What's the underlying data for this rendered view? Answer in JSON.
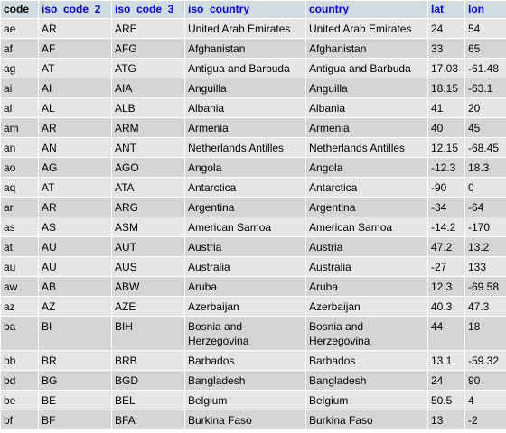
{
  "columns": [
    "code",
    "iso_code_2",
    "iso_code_3",
    "iso_country",
    "country",
    "lat",
    "lon"
  ],
  "rows": [
    [
      "ae",
      "AR",
      "ARE",
      "United Arab Emirates",
      "United Arab Emirates",
      "24",
      "54"
    ],
    [
      "af",
      "AF",
      "AFG",
      "Afghanistan",
      "Afghanistan",
      "33",
      "65"
    ],
    [
      "ag",
      "AT",
      "ATG",
      "Antigua and Barbuda",
      "Antigua and Barbuda",
      "17.03",
      "-61.48"
    ],
    [
      "ai",
      "AI",
      "AIA",
      "Anguilla",
      "Anguilla",
      "18.15",
      "-63.1"
    ],
    [
      "al",
      "AL",
      "ALB",
      "Albania",
      "Albania",
      "41",
      "20"
    ],
    [
      "am",
      "AR",
      "ARM",
      "Armenia",
      "Armenia",
      "40",
      "45"
    ],
    [
      "an",
      "AN",
      "ANT",
      "Netherlands Antilles",
      "Netherlands Antilles",
      "12.15",
      "-68.45"
    ],
    [
      "ao",
      "AG",
      "AGO",
      "Angola",
      "Angola",
      "-12.3",
      "18.3"
    ],
    [
      "aq",
      "AT",
      "ATA",
      "Antarctica",
      "Antarctica",
      "-90",
      "0"
    ],
    [
      "ar",
      "AR",
      "ARG",
      "Argentina",
      "Argentina",
      "-34",
      "-64"
    ],
    [
      "as",
      "AS",
      "ASM",
      "American Samoa",
      "American Samoa",
      "-14.2",
      "-170"
    ],
    [
      "at",
      "AU",
      "AUT",
      "Austria",
      "Austria",
      "47.2",
      "13.2"
    ],
    [
      "au",
      "AU",
      "AUS",
      "Australia",
      "Australia",
      "-27",
      "133"
    ],
    [
      "aw",
      "AB",
      "ABW",
      "Aruba",
      "Aruba",
      "12.3",
      "-69.58"
    ],
    [
      "az",
      "AZ",
      "AZE",
      "Azerbaijan",
      "Azerbaijan",
      "40.3",
      "47.3"
    ],
    [
      "ba",
      "BI",
      "BIH",
      "Bosnia and Herzegovina",
      "Bosnia and Herzegovina",
      "44",
      "18"
    ],
    [
      "bb",
      "BR",
      "BRB",
      "Barbados",
      "Barbados",
      "13.1",
      "-59.32"
    ],
    [
      "bd",
      "BG",
      "BGD",
      "Bangladesh",
      "Bangladesh",
      "24",
      "90"
    ],
    [
      "be",
      "BE",
      "BEL",
      "Belgium",
      "Belgium",
      "50.5",
      "4"
    ],
    [
      "bf",
      "BF",
      "BFA",
      "Burkina Faso",
      "Burkina Faso",
      "13",
      "-2"
    ]
  ]
}
